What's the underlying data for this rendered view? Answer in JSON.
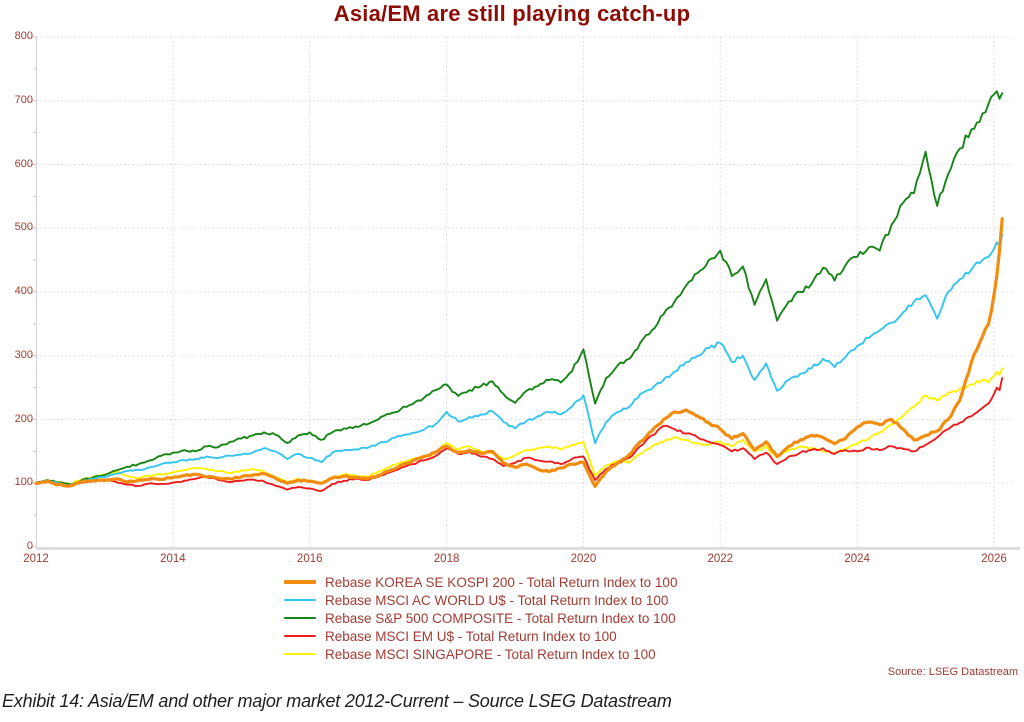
{
  "title": "Asia/EM are still playing catch-up",
  "source": "Source: LSEG Datastream",
  "caption": "Exhibit 14: Asia/EM and other major market 2012-Current – Source LSEG Datastream",
  "colors": {
    "title": "#8c0c06",
    "tick_text": "#a23b32",
    "legend_text": "#a23b32",
    "source_text": "#a23b32",
    "caption_text": "#1f1f1f",
    "grid": "#d9d9d9",
    "axis": "#d6d6d6"
  },
  "chart_data": {
    "type": "line",
    "title": "Asia/EM are still playing catch-up",
    "xlabel": "",
    "ylabel": "",
    "xlim": [
      2012,
      2026.35
    ],
    "ylim": [
      0,
      800
    ],
    "x_ticks": [
      2012,
      2014,
      2016,
      2018,
      2020,
      2022,
      2024,
      2026
    ],
    "y_ticks": [
      0,
      100,
      200,
      300,
      400,
      500,
      600,
      700,
      800
    ],
    "grid": "dotted",
    "legend_position": "bottom",
    "x": [
      2012,
      2012.17,
      2012.33,
      2012.5,
      2012.67,
      2012.83,
      2013,
      2013.17,
      2013.33,
      2013.5,
      2013.67,
      2013.83,
      2014,
      2014.17,
      2014.33,
      2014.5,
      2014.67,
      2014.83,
      2015,
      2015.17,
      2015.33,
      2015.5,
      2015.67,
      2015.83,
      2016,
      2016.17,
      2016.33,
      2016.5,
      2016.67,
      2016.83,
      2017,
      2017.17,
      2017.33,
      2017.5,
      2017.67,
      2017.83,
      2018,
      2018.17,
      2018.33,
      2018.5,
      2018.67,
      2018.83,
      2019,
      2019.17,
      2019.33,
      2019.5,
      2019.67,
      2019.83,
      2020,
      2020.17,
      2020.33,
      2020.5,
      2020.67,
      2020.83,
      2021,
      2021.17,
      2021.33,
      2021.5,
      2021.67,
      2021.83,
      2022,
      2022.17,
      2022.33,
      2022.5,
      2022.67,
      2022.83,
      2023,
      2023.17,
      2023.33,
      2023.5,
      2023.67,
      2023.83,
      2024,
      2024.17,
      2024.33,
      2024.5,
      2024.67,
      2024.83,
      2025,
      2025.17,
      2025.33,
      2025.5,
      2025.67,
      2025.83,
      2025.92,
      2026,
      2026.04,
      2026.08,
      2026.12
    ],
    "series": [
      {
        "name": "Rebase KOREA SE KOSPI 200 - Total Return Index to 100",
        "color": "#f28c0e",
        "width": 3.2,
        "values": [
          100,
          103,
          98,
          96,
          102,
          104,
          104,
          107,
          102,
          105,
          107,
          106,
          109,
          112,
          114,
          110,
          108,
          107,
          110,
          113,
          115,
          108,
          100,
          105,
          103,
          100,
          108,
          111,
          109,
          107,
          112,
          120,
          128,
          135,
          142,
          148,
          158,
          148,
          152,
          147,
          150,
          132,
          125,
          130,
          122,
          118,
          124,
          130,
          133,
          95,
          118,
          132,
          145,
          165,
          182,
          200,
          212,
          215,
          205,
          195,
          185,
          170,
          178,
          152,
          165,
          142,
          158,
          168,
          175,
          172,
          162,
          170,
          188,
          196,
          192,
          200,
          185,
          168,
          175,
          182,
          200,
          230,
          290,
          330,
          350,
          395,
          425,
          465,
          515
        ]
      },
      {
        "name": "Rebase MSCI AC WORLD U$ - Total Return Index to 100",
        "color": "#33c5f0",
        "width": 1.9,
        "values": [
          100,
          104,
          100,
          97,
          103,
          107,
          110,
          115,
          119,
          121,
          125,
          130,
          133,
          136,
          138,
          142,
          140,
          143,
          145,
          148,
          155,
          150,
          138,
          146,
          140,
          133,
          148,
          152,
          153,
          155,
          162,
          168,
          174,
          179,
          184,
          192,
          212,
          197,
          204,
          208,
          213,
          196,
          186,
          198,
          205,
          212,
          208,
          220,
          238,
          163,
          196,
          212,
          220,
          240,
          248,
          262,
          275,
          290,
          300,
          312,
          320,
          290,
          300,
          262,
          288,
          245,
          262,
          272,
          280,
          295,
          282,
          298,
          315,
          328,
          340,
          352,
          368,
          385,
          395,
          358,
          400,
          420,
          435,
          450,
          455,
          468,
          478,
          472,
          490
        ]
      },
      {
        "name": "Rebase S&P 500 COMPOSITE - Total Return Index to 100",
        "color": "#168516",
        "width": 1.9,
        "values": [
          100,
          105,
          101,
          98,
          105,
          109,
          113,
          120,
          126,
          130,
          136,
          143,
          148,
          152,
          150,
          158,
          157,
          165,
          170,
          175,
          180,
          176,
          163,
          175,
          180,
          168,
          180,
          186,
          189,
          192,
          200,
          209,
          216,
          224,
          234,
          246,
          255,
          237,
          246,
          252,
          260,
          240,
          226,
          245,
          252,
          262,
          258,
          275,
          310,
          225,
          265,
          285,
          295,
          320,
          340,
          365,
          385,
          410,
          430,
          450,
          465,
          425,
          440,
          380,
          420,
          355,
          385,
          400,
          412,
          438,
          418,
          442,
          455,
          470,
          465,
          505,
          540,
          555,
          620,
          535,
          585,
          625,
          655,
          680,
          695,
          710,
          715,
          703,
          712
        ]
      },
      {
        "name": "Rebase MSCI EM U$ - Total Return Index to 100",
        "color": "#ed1c1c",
        "width": 1.9,
        "values": [
          100,
          104,
          98,
          95,
          101,
          104,
          106,
          102,
          98,
          96,
          100,
          99,
          101,
          104,
          107,
          110,
          105,
          102,
          104,
          106,
          103,
          96,
          90,
          94,
          92,
          88,
          99,
          104,
          107,
          105,
          110,
          117,
          124,
          130,
          136,
          142,
          155,
          146,
          150,
          142,
          138,
          127,
          132,
          140,
          136,
          134,
          130,
          138,
          142,
          105,
          122,
          132,
          140,
          158,
          175,
          190,
          185,
          178,
          172,
          165,
          160,
          150,
          155,
          138,
          148,
          130,
          142,
          148,
          152,
          155,
          146,
          152,
          150,
          156,
          152,
          158,
          154,
          150,
          160,
          172,
          185,
          195,
          205,
          218,
          225,
          240,
          250,
          246,
          265
        ]
      },
      {
        "name": "Rebase MSCI SINGAPORE - Total Return Index to 100",
        "color": "#fff200",
        "width": 1.9,
        "values": [
          100,
          105,
          102,
          99,
          106,
          110,
          114,
          118,
          112,
          108,
          112,
          114,
          117,
          121,
          124,
          122,
          119,
          116,
          120,
          123,
          118,
          110,
          102,
          107,
          103,
          100,
          110,
          114,
          112,
          110,
          118,
          126,
          133,
          138,
          142,
          147,
          163,
          153,
          158,
          150,
          147,
          138,
          144,
          152,
          155,
          158,
          153,
          160,
          165,
          112,
          128,
          135,
          132,
          146,
          158,
          165,
          172,
          168,
          163,
          160,
          165,
          158,
          168,
          150,
          158,
          140,
          152,
          158,
          155,
          150,
          148,
          154,
          162,
          170,
          180,
          192,
          205,
          220,
          238,
          230,
          242,
          248,
          255,
          262,
          258,
          268,
          275,
          270,
          280
        ]
      }
    ]
  }
}
